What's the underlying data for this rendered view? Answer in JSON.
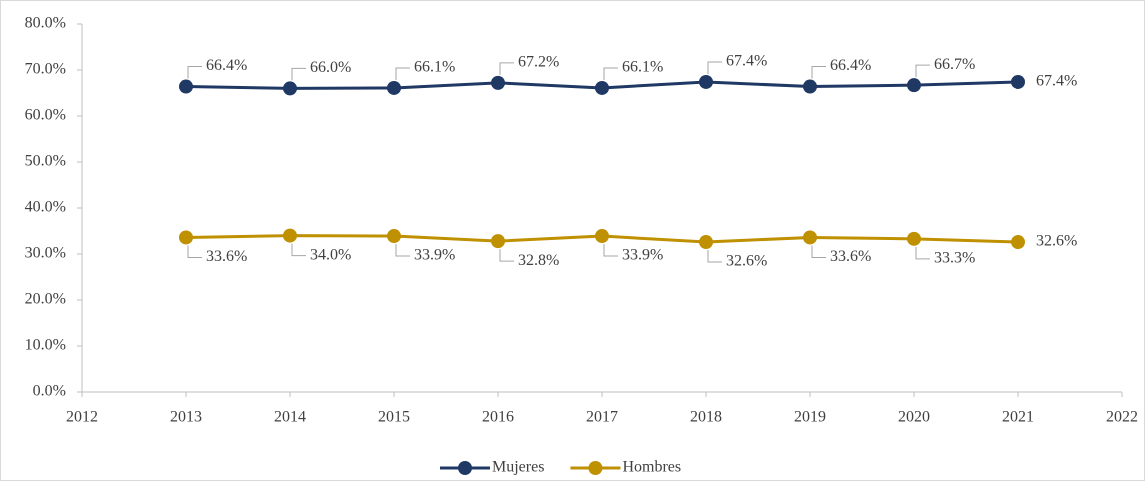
{
  "chart_data": {
    "type": "line",
    "x": [
      2013,
      2014,
      2015,
      2016,
      2017,
      2018,
      2019,
      2020,
      2021
    ],
    "series": [
      {
        "name": "Mujeres",
        "color": "#1f3864",
        "values": [
          66.4,
          66.0,
          66.1,
          67.2,
          66.1,
          67.4,
          66.4,
          66.7,
          67.4
        ],
        "value_labels": [
          "66.4%",
          "66.0%",
          "66.1%",
          "67.2%",
          "66.1%",
          "67.4%",
          "66.4%",
          "66.7%",
          "67.4%"
        ]
      },
      {
        "name": "Hombres",
        "color": "#bf9000",
        "values": [
          33.6,
          34.0,
          33.9,
          32.8,
          33.9,
          32.6,
          33.6,
          33.3,
          32.6
        ],
        "value_labels": [
          "33.6%",
          "34.0%",
          "33.9%",
          "32.8%",
          "33.9%",
          "32.6%",
          "33.6%",
          "33.3%",
          "32.6%"
        ]
      }
    ],
    "xlim": [
      2012,
      2022
    ],
    "xticks": [
      2012,
      2013,
      2014,
      2015,
      2016,
      2017,
      2018,
      2019,
      2020,
      2021,
      2022
    ],
    "ylim": [
      0,
      80
    ],
    "yticks": [
      {
        "value": 0,
        "label": "0.0%"
      },
      {
        "value": 10,
        "label": "10.0%"
      },
      {
        "value": 20,
        "label": "20.0%"
      },
      {
        "value": 30,
        "label": "30.0%"
      },
      {
        "value": 40,
        "label": "40.0%"
      },
      {
        "value": 50,
        "label": "50.0%"
      },
      {
        "value": 60,
        "label": "60.0%"
      },
      {
        "value": 70,
        "label": "70.0%"
      },
      {
        "value": 80,
        "label": "80.0%"
      }
    ],
    "grid": false,
    "legend": "bottom"
  }
}
